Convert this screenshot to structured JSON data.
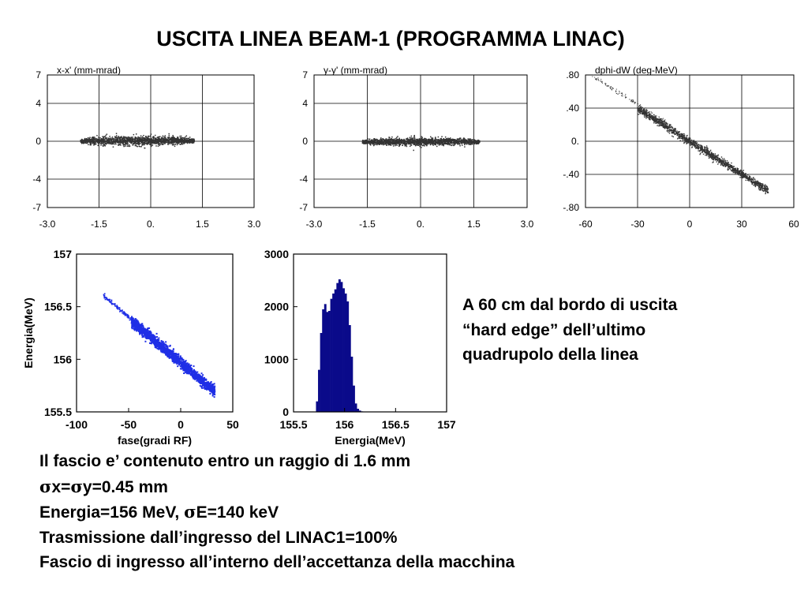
{
  "slide": {
    "title": "USCITA LINEA BEAM-1 (PROGRAMMA LINAC)",
    "note": [
      "A 60 cm dal bordo di uscita",
      "“hard edge” dell’ultimo",
      "quadrupolo della linea"
    ],
    "bottom": {
      "line1": "Il fascio e’ contenuto entro un raggio di 1.6 mm",
      "sigma_symbol": "σ",
      "line2_a": "x=",
      "line2_b": "y=0.45 mm",
      "line3_a": "Energia=156 MeV, ",
      "line3_b": "E=140 keV",
      "line4": "Trasmissione dall’ingresso del LINAC1=100%",
      "line5": "Fascio di ingresso all’interno dell’accettanza della macchina"
    },
    "colors": {
      "scatter_gray": "#333333",
      "scatter_blue": "#1f2fe6",
      "hist_navy": "#0a0a8a",
      "grid": "#000000"
    }
  },
  "chart_data": [
    {
      "id": "xx",
      "type": "scatter",
      "label": "x-x' (mm-mrad)",
      "xlim": [
        -3,
        3
      ],
      "ylim": [
        -7,
        7
      ],
      "xticks": [
        -3,
        -1.5,
        0,
        1.5,
        3
      ],
      "xtick_labels": [
        "-3.0",
        "-1.5",
        "0.",
        "1.5",
        "3.0"
      ],
      "yticks": [
        7,
        4,
        0,
        -4,
        -7
      ],
      "ytick_labels": [
        "7",
        "4",
        "0",
        "-4",
        "-7"
      ],
      "grid": true,
      "distribution": {
        "x_center": -0.4,
        "x_halfwidth": 1.65,
        "y_center": 0.1,
        "y_halfwidth": 0.55,
        "slope": 0
      }
    },
    {
      "id": "yy",
      "type": "scatter",
      "label": "y-y' (mm-mrad)",
      "xlim": [
        -3,
        3
      ],
      "ylim": [
        -7,
        7
      ],
      "xticks": [
        -3,
        -1.5,
        0,
        1.5,
        3
      ],
      "xtick_labels": [
        "-3.0",
        "-1.5",
        "0.",
        "1.5",
        "3.0"
      ],
      "yticks": [
        7,
        4,
        0,
        -4,
        -7
      ],
      "ytick_labels": [
        "7",
        "4",
        "0",
        "-4",
        "-7"
      ],
      "grid": true,
      "distribution": {
        "x_center": 0.0,
        "x_halfwidth": 1.65,
        "y_center": 0.0,
        "y_halfwidth": 0.45,
        "slope": 0
      }
    },
    {
      "id": "phw",
      "type": "scatter",
      "label": "dphi-dW (deg-MeV)",
      "xlim": [
        -60,
        60
      ],
      "ylim": [
        -0.8,
        0.8
      ],
      "xticks": [
        -60,
        -30,
        0,
        30,
        60
      ],
      "xtick_labels": [
        "-60",
        "-30",
        "0",
        "30",
        "60"
      ],
      "yticks": [
        0.8,
        0.4,
        0,
        -0.4,
        -0.8
      ],
      "ytick_labels": [
        ".80",
        ".40",
        "0.",
        "-.40",
        "-.80"
      ],
      "grid": true,
      "distribution": {
        "x_start": -30,
        "x_end": 45,
        "tail_x_start": -57,
        "slope": -0.0132,
        "intercept": 0.0,
        "width": 0.05
      }
    },
    {
      "id": "efase",
      "type": "scatter",
      "ylabel": "Energia(MeV)",
      "xlabel": "fase(gradi RF)",
      "xlim": [
        -100,
        50
      ],
      "ylim": [
        155.5,
        157
      ],
      "xticks": [
        -100,
        -50,
        0,
        50
      ],
      "xtick_labels": [
        "-100",
        "-50",
        "0",
        "50"
      ],
      "yticks": [
        157,
        156.5,
        156,
        155.5
      ],
      "ytick_labels": [
        "157",
        "156.5",
        "156",
        "155.5"
      ],
      "grid": false,
      "distribution": {
        "x_start": -48,
        "x_end": 32,
        "tail_x_start": -75,
        "slope": -0.0083,
        "at_x0": 155.97,
        "width": 0.05
      }
    },
    {
      "id": "hist",
      "type": "bar",
      "xlabel": "Energia(MeV)",
      "xlim": [
        155.5,
        157
      ],
      "ylim": [
        0,
        3000
      ],
      "xticks": [
        155.5,
        156,
        156.5,
        157
      ],
      "xtick_labels": [
        "155.5",
        "156",
        "156.5",
        "157"
      ],
      "yticks": [
        3000,
        2000,
        1000,
        0
      ],
      "ytick_labels": [
        "3000",
        "2000",
        "1000",
        "0"
      ],
      "grid": false,
      "bins": [
        [
          155.72,
          200
        ],
        [
          155.74,
          800
        ],
        [
          155.76,
          1500
        ],
        [
          155.78,
          1950
        ],
        [
          155.8,
          2050
        ],
        [
          155.82,
          1900
        ],
        [
          155.84,
          1920
        ],
        [
          155.86,
          2150
        ],
        [
          155.88,
          2250
        ],
        [
          155.9,
          2330
        ],
        [
          155.92,
          2450
        ],
        [
          155.94,
          2520
        ],
        [
          155.96,
          2470
        ],
        [
          155.98,
          2350
        ],
        [
          156.0,
          2250
        ],
        [
          156.02,
          2100
        ],
        [
          156.04,
          1650
        ],
        [
          156.06,
          1050
        ],
        [
          156.08,
          500
        ],
        [
          156.1,
          160
        ],
        [
          156.12,
          60
        ],
        [
          156.14,
          25
        ],
        [
          156.16,
          10
        ],
        [
          156.18,
          5
        ]
      ]
    }
  ]
}
